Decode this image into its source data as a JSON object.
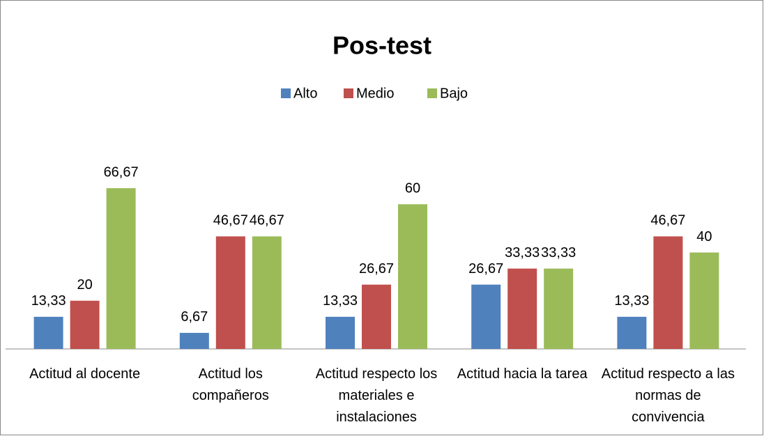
{
  "chart_data": {
    "type": "bar",
    "title": "Pos-test",
    "categories": [
      "Actitud al docente",
      "Actitud los compañeros",
      "Actitud respecto los materiales e instalaciones",
      "Actitud hacia la tarea",
      "Actitud respecto a las normas de convivencia"
    ],
    "series": [
      {
        "name": "Alto",
        "color": "#4f81bd",
        "values": [
          13.33,
          6.67,
          13.33,
          26.67,
          13.33
        ],
        "value_labels": [
          "13,33",
          "6,67",
          "13,33",
          "26,67",
          "13,33"
        ]
      },
      {
        "name": "Medio",
        "color": "#c0504d",
        "values": [
          20,
          46.67,
          26.67,
          33.33,
          46.67
        ],
        "value_labels": [
          "20",
          "46,67",
          "26,67",
          "33,33",
          "46,67"
        ]
      },
      {
        "name": "Bajo",
        "color": "#9bbb59",
        "values": [
          66.67,
          46.67,
          60,
          33.33,
          40
        ],
        "value_labels": [
          "66,67",
          "46,67",
          "60",
          "33,33",
          "40"
        ]
      }
    ],
    "ylim": [
      0,
      80
    ],
    "legend": "top"
  }
}
